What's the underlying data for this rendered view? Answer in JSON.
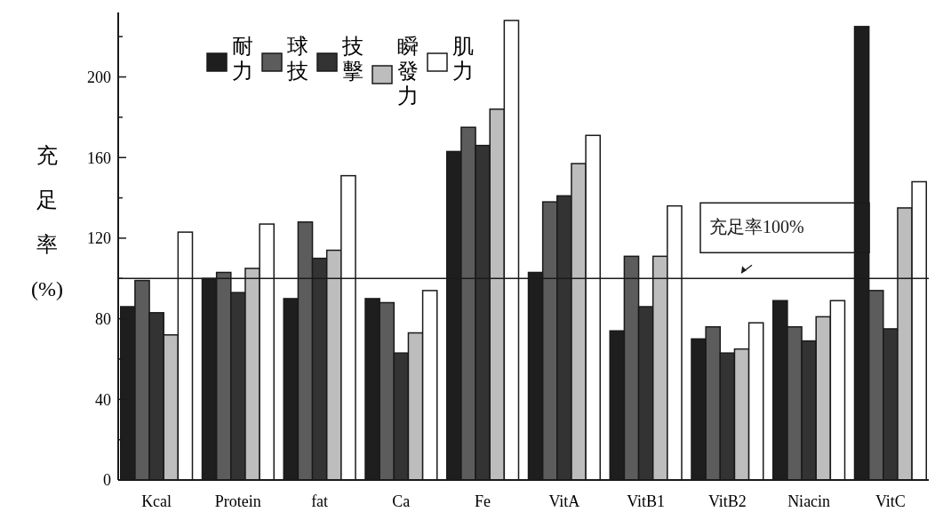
{
  "chart_data": {
    "type": "bar",
    "ylabel": "充足率(%)",
    "categories": [
      "Kcal",
      "Protein",
      "fat",
      "Ca",
      "Fe",
      "VitA",
      "VitB1",
      "VitB2",
      "Niacin",
      "VitC"
    ],
    "series": [
      {
        "name": "耐力",
        "color": "#1e1e1e",
        "values": [
          86,
          100,
          90,
          90,
          163,
          103,
          74,
          70,
          89,
          225
        ]
      },
      {
        "name": "球技",
        "color": "#5c5c5c",
        "values": [
          99,
          103,
          128,
          88,
          175,
          138,
          111,
          76,
          76,
          94
        ]
      },
      {
        "name": "技擊",
        "color": "#333333",
        "values": [
          83,
          93,
          110,
          63,
          166,
          141,
          86,
          63,
          69,
          75
        ]
      },
      {
        "name": "瞬發力",
        "color": "#bdbdbd",
        "values": [
          72,
          105,
          114,
          73,
          184,
          157,
          111,
          65,
          81,
          135
        ]
      },
      {
        "name": "肌力",
        "color": "#ffffff",
        "values": [
          123,
          127,
          151,
          94,
          228,
          171,
          136,
          78,
          89,
          148
        ]
      }
    ],
    "ylim": [
      0,
      232
    ],
    "yticks": [
      0,
      {
        "value": 20,
        "label": null
      },
      40,
      {
        "value": 60,
        "label": null
      },
      80,
      {
        "value": 100,
        "label": null
      },
      120,
      {
        "value": 140,
        "label": null
      },
      160,
      {
        "value": 180,
        "label": null
      },
      200,
      {
        "value": 220,
        "label": null
      }
    ],
    "ref_lines": [
      {
        "axis": "y",
        "value": 100,
        "label": "充足率100%"
      }
    ],
    "legend": "top left",
    "grid": false
  }
}
